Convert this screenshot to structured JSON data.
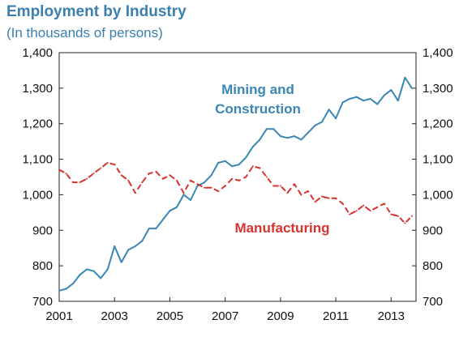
{
  "colors": {
    "mining": "#3a86b4",
    "manufacturing": "#d6332f",
    "title": "#3a7fb0"
  },
  "chart_data": {
    "type": "line",
    "title": "Employment by Industry",
    "subtitle": "(In thousands of persons)",
    "xlabel": "",
    "ylabel": "",
    "xlim": [
      2001.0,
      2013.9
    ],
    "ylim": [
      700,
      1400
    ],
    "yticks": [
      700,
      800,
      900,
      1000,
      1100,
      1200,
      1300,
      1400
    ],
    "ytick_labels": [
      "700",
      "800",
      "900",
      "1,000",
      "1,100",
      "1,200",
      "1,300",
      "1,400"
    ],
    "xticks": [
      2001,
      2003,
      2005,
      2007,
      2009,
      2011,
      2013
    ],
    "xtick_labels": [
      "2001",
      "2003",
      "2005",
      "2007",
      "2009",
      "2011",
      "2013"
    ],
    "grid": false,
    "y_axis_both_sides": true,
    "series": [
      {
        "name": "Mining and Construction",
        "label_lines": [
          "Mining and",
          "Construction"
        ],
        "style": "solid",
        "x": [
          2001.0,
          2001.25,
          2001.5,
          2001.75,
          2002.0,
          2002.25,
          2002.5,
          2002.75,
          2003.0,
          2003.25,
          2003.5,
          2003.75,
          2004.0,
          2004.25,
          2004.5,
          2004.75,
          2005.0,
          2005.25,
          2005.5,
          2005.75,
          2006.0,
          2006.25,
          2006.5,
          2006.75,
          2007.0,
          2007.25,
          2007.5,
          2007.75,
          2008.0,
          2008.25,
          2008.5,
          2008.75,
          2009.0,
          2009.25,
          2009.5,
          2009.75,
          2010.0,
          2010.25,
          2010.5,
          2010.75,
          2011.0,
          2011.25,
          2011.5,
          2011.75,
          2012.0,
          2012.25,
          2012.5,
          2012.75,
          2013.0,
          2013.25,
          2013.5,
          2013.75
        ],
        "values": [
          730,
          735,
          750,
          775,
          790,
          785,
          765,
          790,
          855,
          810,
          845,
          855,
          870,
          905,
          905,
          930,
          955,
          965,
          1000,
          985,
          1025,
          1035,
          1055,
          1090,
          1095,
          1080,
          1085,
          1105,
          1135,
          1155,
          1185,
          1185,
          1165,
          1160,
          1165,
          1155,
          1175,
          1195,
          1205,
          1240,
          1215,
          1260,
          1270,
          1275,
          1265,
          1270,
          1255,
          1280,
          1295,
          1265,
          1330,
          1300
        ]
      },
      {
        "name": "Manufacturing",
        "label_lines": [
          "Manufacturing"
        ],
        "style": "dashed",
        "x": [
          2001.0,
          2001.25,
          2001.5,
          2001.75,
          2002.0,
          2002.25,
          2002.5,
          2002.75,
          2003.0,
          2003.25,
          2003.5,
          2003.75,
          2004.0,
          2004.25,
          2004.5,
          2004.75,
          2005.0,
          2005.25,
          2005.5,
          2005.75,
          2006.0,
          2006.25,
          2006.5,
          2006.75,
          2007.0,
          2007.25,
          2007.5,
          2007.75,
          2008.0,
          2008.25,
          2008.5,
          2008.75,
          2009.0,
          2009.25,
          2009.5,
          2009.75,
          2010.0,
          2010.25,
          2010.5,
          2010.75,
          2011.0,
          2011.25,
          2011.5,
          2011.75,
          2012.0,
          2012.25,
          2012.5,
          2012.75,
          2013.0,
          2013.25,
          2013.5,
          2013.75
        ],
        "values": [
          1070,
          1060,
          1035,
          1035,
          1045,
          1060,
          1075,
          1090,
          1085,
          1055,
          1040,
          1005,
          1035,
          1060,
          1065,
          1045,
          1055,
          1040,
          1005,
          1040,
          1030,
          1020,
          1020,
          1010,
          1025,
          1045,
          1040,
          1050,
          1080,
          1075,
          1050,
          1025,
          1025,
          1005,
          1030,
          1000,
          1010,
          980,
          995,
          990,
          990,
          975,
          945,
          955,
          970,
          955,
          965,
          975,
          945,
          940,
          920,
          940
        ]
      }
    ]
  }
}
